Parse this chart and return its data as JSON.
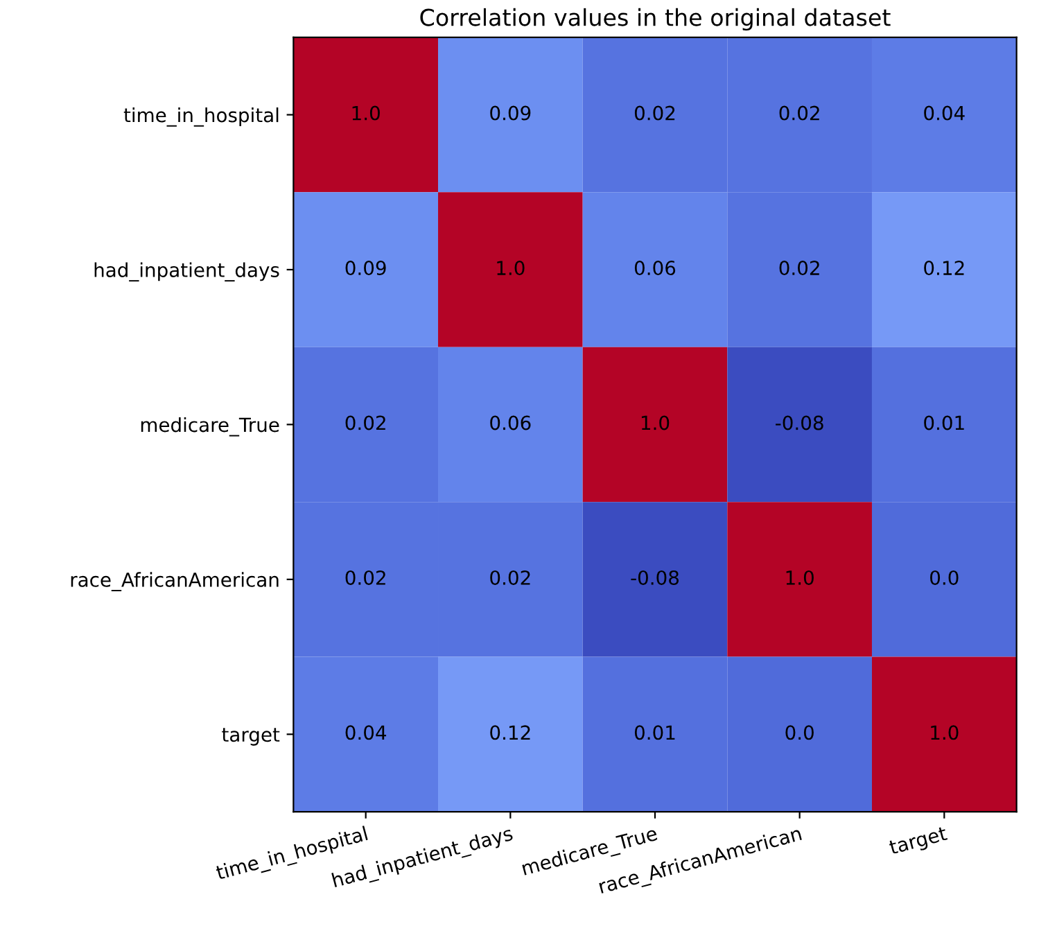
{
  "chart_data": {
    "type": "heatmap",
    "title": "Correlation values in the original dataset",
    "categories": [
      "time_in_hospital",
      "had_inpatient_days",
      "medicare_True",
      "race_AfricanAmerican",
      "target"
    ],
    "y_categories": [
      "time_in_hospital",
      "had_inpatient_days",
      "medicare_True",
      "race_AfricanAmerican",
      "target"
    ],
    "cells": [
      [
        1.0,
        0.09,
        0.02,
        0.02,
        0.04
      ],
      [
        0.09,
        1.0,
        0.06,
        0.02,
        0.12
      ],
      [
        0.02,
        0.06,
        1.0,
        -0.08,
        0.01
      ],
      [
        0.02,
        0.02,
        -0.08,
        1.0,
        0.0
      ],
      [
        0.04,
        0.12,
        0.01,
        0.0,
        1.0
      ]
    ],
    "cell_labels": [
      [
        "1.0",
        "0.09",
        "0.02",
        "0.02",
        "0.04"
      ],
      [
        "0.09",
        "1.0",
        "0.06",
        "0.02",
        "0.12"
      ],
      [
        "0.02",
        "0.06",
        "1.0",
        "-0.08",
        "0.01"
      ],
      [
        "0.02",
        "0.02",
        "-0.08",
        "1.0",
        "0.0"
      ],
      [
        "0.04",
        "0.12",
        "0.01",
        "0.0",
        "1.0"
      ]
    ]
  }
}
